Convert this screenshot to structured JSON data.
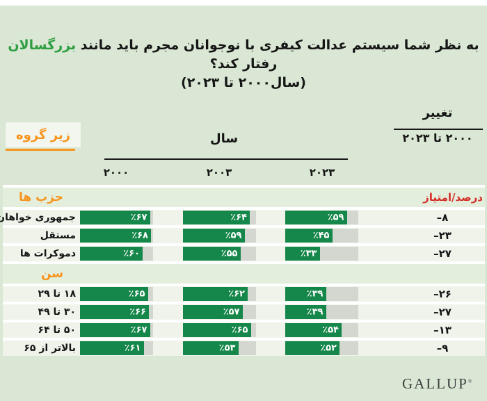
{
  "colors": {
    "page_background": "#d9e7d4",
    "bar_green": "#16874a",
    "track_gray": "#d4d7d0",
    "row_band": "#eff3ea",
    "section_band": "#e4eedd",
    "orange": "#f7941d",
    "red": "#d42e27",
    "title_highlight_green": "#2f9e41",
    "text_black": "#151515"
  },
  "title": {
    "line1_pre": "به نظر شما سیستم عدالت کیفری با نوجوانان مجرم باید مانند",
    "line1_highlight": "بزرگسالان",
    "line1_post": "رفتار کند؟",
    "line2": "(سال۲۰۰۰ تا ۲۰۲۳)"
  },
  "header": {
    "subgroup_label": "زیر گروه",
    "year_label": "سال",
    "change_label": "تغییر",
    "change_range": "۲۰۰۰ تا ۲۰۲۳",
    "year_columns": [
      "۲۰۰۰",
      "۲۰۰۳",
      "۲۰۲۳"
    ],
    "score_percent_label": "درصد/امتیاز"
  },
  "table": {
    "rows": [
      {
        "type": "section",
        "label": "حزب ها",
        "right_label": "درصد/امتیاز"
      },
      {
        "type": "data",
        "label": "جمهوری خواهان",
        "values": [
          67,
          64,
          59
        ],
        "value_labels": [
          "٪۶۷",
          "٪۶۴",
          "٪۵۹"
        ],
        "change_label": "–۸"
      },
      {
        "type": "data",
        "label": "مستقل",
        "values": [
          68,
          59,
          45
        ],
        "value_labels": [
          "٪۶۸",
          "٪۵۹",
          "٪۴۵"
        ],
        "change_label": "–۲۳"
      },
      {
        "type": "data",
        "label": "دموکرات ها",
        "values": [
          60,
          55,
          33
        ],
        "value_labels": [
          "٪۶۰",
          "٪۵۵",
          "٪۳۳"
        ],
        "change_label": "–۲۷"
      },
      {
        "type": "section",
        "label": "سن",
        "right_label": ""
      },
      {
        "type": "data",
        "label": "۱۸ تا ۲۹",
        "values": [
          65,
          62,
          39
        ],
        "value_labels": [
          "٪۶۵",
          "٪۶۲",
          "٪۳۹"
        ],
        "change_label": "–۲۶"
      },
      {
        "type": "data",
        "label": "۳۰ تا ۴۹",
        "values": [
          66,
          57,
          39
        ],
        "value_labels": [
          "٪۶۶",
          "٪۵۷",
          "٪۳۹"
        ],
        "change_label": "–۲۷"
      },
      {
        "type": "data",
        "label": "۵۰ تا ۶۴",
        "values": [
          67,
          65,
          54
        ],
        "value_labels": [
          "٪۶۷",
          "٪۶۵",
          "٪۵۴"
        ],
        "change_label": "–۱۳"
      },
      {
        "type": "data",
        "label": "بالاتر از ۶۵",
        "values": [
          61,
          53,
          52
        ],
        "value_labels": [
          "٪۶۱",
          "٪۵۳",
          "٪۵۲"
        ],
        "change_label": "–۹"
      }
    ]
  },
  "footer": {
    "logo": "GALLUP",
    "logo_mark": "®"
  },
  "chart_data": {
    "type": "bar",
    "orientation": "horizontal",
    "title": "به نظر شما سیستم عدالت کیفری با نوجوانان مجرم باید مانند بزرگسالان رفتار کند؟ (سال۲۰۰۰ تا ۲۰۲۳)",
    "unit": "percent",
    "xlim": [
      0,
      70
    ],
    "year_series": [
      "۲۰۰۰",
      "۲۰۰۳",
      "۲۰۲۳"
    ],
    "change_column": "۲۰۰۰ تا ۲۰۲۳",
    "sections": [
      {
        "label": "حزب ها",
        "rows": [
          {
            "label": "جمهوری خواهان",
            "values": [
              67,
              64,
              59
            ],
            "change": -8
          },
          {
            "label": "مستقل",
            "values": [
              68,
              59,
              45
            ],
            "change": -23
          },
          {
            "label": "دموکرات ها",
            "values": [
              60,
              55,
              33
            ],
            "change": -27
          }
        ]
      },
      {
        "label": "سن",
        "rows": [
          {
            "label": "۱۸ تا ۲۹",
            "values": [
              65,
              62,
              39
            ],
            "change": -26
          },
          {
            "label": "۳۰ تا ۴۹",
            "values": [
              66,
              57,
              39
            ],
            "change": -27
          },
          {
            "label": "۵۰ تا ۶۴",
            "values": [
              67,
              65,
              54
            ],
            "change": -13
          },
          {
            "label": "بالاتر از ۶۵",
            "values": [
              61,
              53,
              52
            ],
            "change": -9
          }
        ]
      }
    ]
  }
}
